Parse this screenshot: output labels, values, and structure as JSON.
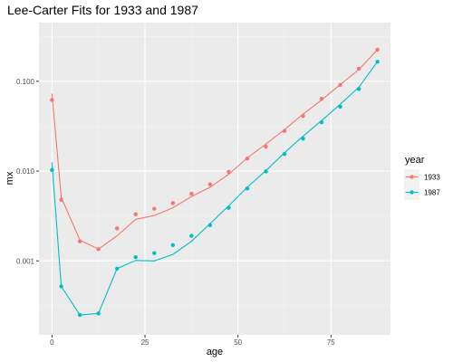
{
  "chart_data": {
    "type": "line",
    "title": "Lee-Carter Fits for 1933 and 1987",
    "xlabel": "age",
    "ylabel": "mx",
    "x_ticks": [
      "0",
      "25",
      "50",
      "75"
    ],
    "x_tick_values": [
      0,
      25,
      50,
      75
    ],
    "y_ticks": [
      "0.001",
      "0.010",
      "0.100"
    ],
    "y_tick_values": [
      0.001,
      0.01,
      0.1
    ],
    "y_scale": "log10",
    "xlim": [
      -3.5,
      91
    ],
    "ylim": [
      0.00015,
      0.45
    ],
    "grid": true,
    "legend_title": "year",
    "legend_position": "right",
    "series": [
      {
        "name": "1933",
        "color": "#F8766D",
        "points_x": [
          0,
          2.5,
          7.5,
          12.5,
          17.5,
          22.5,
          27.5,
          32.5,
          37.5,
          42.5,
          47.5,
          52.5,
          57.5,
          62.5,
          67.5,
          72.5,
          77.5,
          82.5,
          87.5
        ],
        "points_y": [
          0.062,
          0.0048,
          0.00165,
          0.00135,
          0.0023,
          0.0033,
          0.0038,
          0.0044,
          0.0056,
          0.0071,
          0.0098,
          0.0138,
          0.0187,
          0.028,
          0.041,
          0.064,
          0.091,
          0.138,
          0.225
        ],
        "fit_x": [
          0,
          2.5,
          7.5,
          12.5,
          17.5,
          22.5,
          27.5,
          32.5,
          37.5,
          42.5,
          47.5,
          52.5,
          57.5,
          62.5,
          67.5,
          72.5,
          77.5,
          82.5,
          87.5
        ],
        "fit_y": [
          0.073,
          0.0051,
          0.0017,
          0.00135,
          0.0019,
          0.0029,
          0.0032,
          0.0039,
          0.0052,
          0.0066,
          0.0092,
          0.014,
          0.02,
          0.029,
          0.043,
          0.062,
          0.092,
          0.135,
          0.225
        ]
      },
      {
        "name": "1987",
        "color": "#00BFC4",
        "points_x": [
          0,
          2.5,
          7.5,
          12.5,
          17.5,
          22.5,
          27.5,
          32.5,
          37.5,
          42.5,
          47.5,
          52.5,
          57.5,
          62.5,
          67.5,
          72.5,
          77.5,
          82.5,
          87.5
        ],
        "points_y": [
          0.0103,
          0.00052,
          0.00025,
          0.00026,
          0.00082,
          0.0011,
          0.00122,
          0.0015,
          0.0019,
          0.0025,
          0.0039,
          0.0064,
          0.0099,
          0.0155,
          0.023,
          0.035,
          0.052,
          0.082,
          0.165
        ],
        "fit_x": [
          0,
          2.5,
          7.5,
          12.5,
          17.5,
          22.5,
          27.5,
          32.5,
          37.5,
          42.5,
          47.5,
          52.5,
          57.5,
          62.5,
          67.5,
          72.5,
          77.5,
          82.5,
          87.5
        ],
        "fit_y": [
          0.0125,
          0.00052,
          0.00025,
          0.00026,
          0.00082,
          0.00101,
          0.001,
          0.00118,
          0.00165,
          0.0026,
          0.0041,
          0.0066,
          0.0101,
          0.016,
          0.0245,
          0.0365,
          0.0555,
          0.086,
          0.165
        ]
      }
    ]
  }
}
